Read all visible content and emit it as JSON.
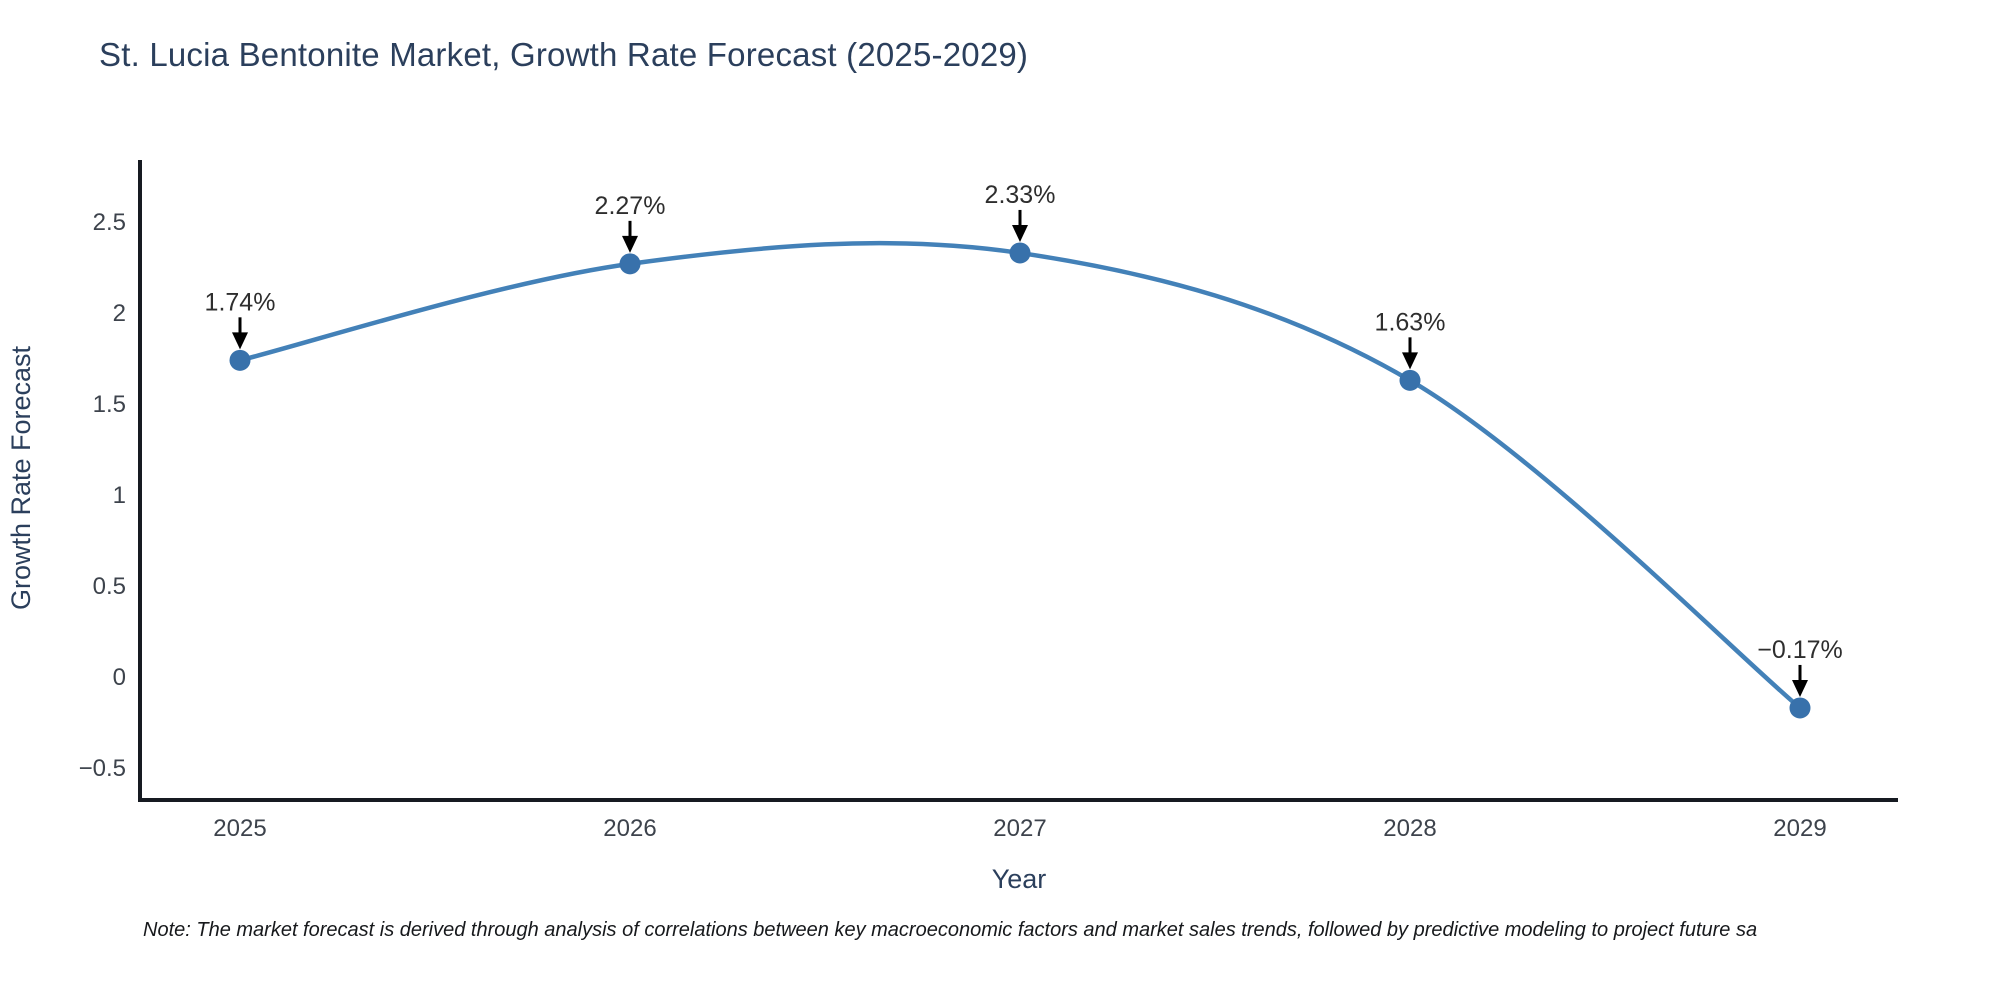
{
  "title": "St. Lucia Bentonite Market, Growth Rate Forecast (2025-2029)",
  "note": "Note: The market forecast is derived through analysis of correlations between key macroeconomic factors and market sales trends, followed by predictive modeling to project future sa",
  "colors": {
    "line": "#4381b8",
    "marker": "#3871ab",
    "axis": "#161a21",
    "annotation_arrow": "#000000",
    "title_text": "#2b3f5c",
    "tick_text": "#3d434c"
  },
  "chart_data": {
    "type": "line",
    "title": "St. Lucia Bentonite Market, Growth Rate Forecast (2025-2029)",
    "xlabel": "Year",
    "ylabel": "Growth Rate Forecast",
    "categories": [
      "2025",
      "2026",
      "2027",
      "2028",
      "2029"
    ],
    "values": [
      1.74,
      2.27,
      2.33,
      1.63,
      -0.17
    ],
    "point_labels": [
      "1.74%",
      "2.27%",
      "2.33%",
      "1.63%",
      "-0.17%"
    ],
    "yticks": [
      2.5,
      2,
      1.5,
      1,
      0.5,
      0,
      -0.5
    ],
    "ylim": [
      -0.68,
      2.84
    ],
    "line_shape": "spline",
    "marker": "circle",
    "grid": false,
    "legend": "none",
    "annotations": "percent value labels with black down-arrows above each data point"
  }
}
